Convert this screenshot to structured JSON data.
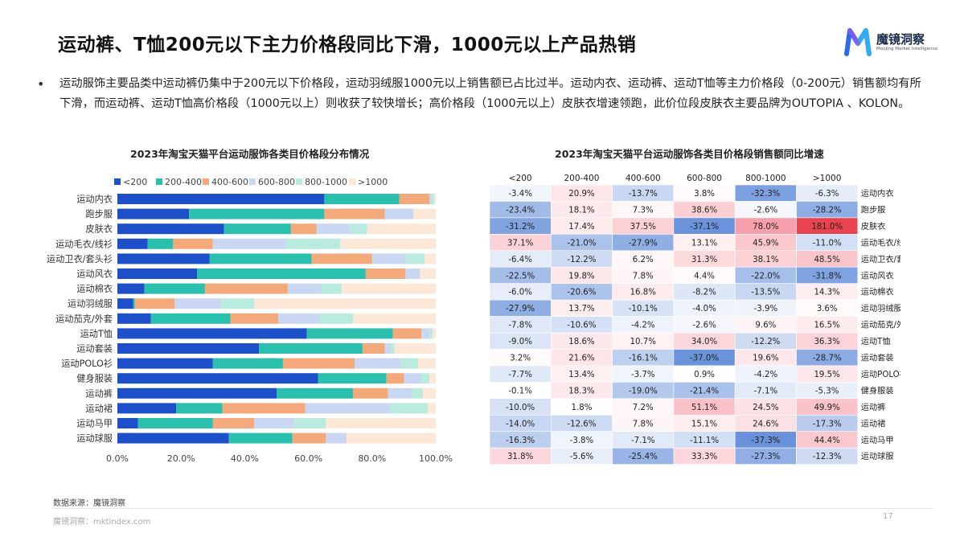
{
  "page": {
    "title": "运动裤、T恤200元以下主力价格段同比下滑，1000元以上产品热销",
    "bullet": "运动服饰主要品类中运动裤仍集中于200元以下价格段，运动羽绒服1000元以上销售额已占比过半。运动内衣、运动裤、运动T恤等主力价格段（0-200元）销售额均有所下滑，而运动裤、运动T恤高价格段（1000元以上）则收获了较快增长；高价格段（1000元以上）皮肤衣增速领跑，此价位段皮肤衣主要品牌为OUTOPIA 、KOLON。",
    "source": "数据来源：魔镜洞察",
    "footer": "魔镜洞察：mktindex.com",
    "page_number": "17"
  },
  "logo": {
    "name": "魔镜洞察",
    "sub": "Moojing Market Intelligence",
    "colors": [
      "#2d6be4",
      "#8a5cf0",
      "#35b6f0"
    ]
  },
  "chart_data": [
    {
      "type": "bar",
      "stacked": true,
      "orientation": "horizontal",
      "title": "2023年淘宝天猫平台运动服饰各类目价格段分布情况",
      "categories": [
        "运动内衣",
        "跑步服",
        "皮肤衣",
        "运动毛衣/线衫",
        "运动卫衣/套头衫",
        "运动风衣",
        "运动棉衣",
        "运动羽绒服",
        "运动茄克/外套",
        "运动T恤",
        "运动套装",
        "运动POLO衫",
        "健身服装",
        "运动裤",
        "运动裙",
        "运动马甲",
        "运动球服"
      ],
      "series": [
        {
          "name": "<200",
          "color": "#1d50c8",
          "values": [
            65,
            22.5,
            33.5,
            9.5,
            29,
            25,
            8.5,
            5,
            10.5,
            59.5,
            44.5,
            30,
            63,
            50,
            18.5,
            6.5,
            35
          ]
        },
        {
          "name": "200-400",
          "color": "#2bbfae",
          "values": [
            23.5,
            42.5,
            21,
            8,
            32,
            53,
            19,
            0.5,
            25,
            27,
            32.5,
            22,
            21.5,
            24,
            14.5,
            23.5,
            20
          ]
        },
        {
          "name": "400-600",
          "color": "#f4a97b",
          "values": [
            9.5,
            19,
            8,
            12.5,
            19,
            12.5,
            26,
            12.5,
            15,
            9,
            7,
            22.5,
            5.5,
            11,
            26,
            13,
            10.5
          ]
        },
        {
          "name": "600-800",
          "color": "#c9d7f2",
          "values": [
            0.5,
            9,
            10.5,
            23,
            10.5,
            4.5,
            10.5,
            14.5,
            13,
            2.5,
            2,
            14.5,
            5.5,
            7.5,
            26.5,
            12.5,
            6.5
          ]
        },
        {
          "name": "800-1000",
          "color": "#b9ecdf",
          "values": [
            1,
            0,
            5.5,
            17,
            6,
            0,
            6.5,
            10.5,
            10.5,
            1,
            1,
            5.5,
            2.5,
            3.5,
            12,
            10,
            0
          ]
        },
        {
          "name": ">1000",
          "color": "#fde7d6",
          "values": [
            0.5,
            7,
            21.5,
            30,
            3.5,
            5,
            29.5,
            57,
            26,
            1,
            13,
            5.5,
            2,
            4,
            2.5,
            34.5,
            28
          ]
        }
      ],
      "x_ticks": [
        "0.0%",
        "20.0%",
        "40.0%",
        "60.0%",
        "80.0%",
        "100.0%"
      ],
      "xlim": [
        0,
        100
      ],
      "legend": "top"
    },
    {
      "type": "heatmap",
      "title": "2023年淘宝天猫平台运动服饰各类目价格段销售额同比增速",
      "columns": [
        "<200",
        "200-400",
        "400-600",
        "600-800",
        "800-1000",
        ">1000"
      ],
      "rows": [
        "运动内衣",
        "跑步服",
        "皮肤衣",
        "运动毛衣/线衫",
        "运动卫衣/套头衫",
        "运动风衣",
        "运动棉衣",
        "运动羽绒服",
        "运动茄克/外套",
        "运动T恤",
        "运动套装",
        "运动POLO衫",
        "健身服装",
        "运动裤",
        "运动裙",
        "运动马甲",
        "运动球服"
      ],
      "values": [
        [
          -3.4,
          20.9,
          -13.7,
          3.8,
          -32.3,
          -6.3
        ],
        [
          -23.4,
          18.1,
          7.3,
          38.6,
          -2.6,
          -28.2
        ],
        [
          -31.2,
          17.4,
          37.5,
          -37.1,
          78.0,
          181.0
        ],
        [
          37.1,
          -21.0,
          -27.9,
          13.1,
          45.9,
          -11.0
        ],
        [
          -6.4,
          -12.2,
          6.2,
          31.3,
          38.1,
          48.5
        ],
        [
          -22.5,
          19.8,
          7.8,
          4.4,
          -22.0,
          -31.8
        ],
        [
          -6.0,
          -20.6,
          16.8,
          -8.2,
          -13.5,
          14.3
        ],
        [
          -27.9,
          13.7,
          -10.1,
          -4.0,
          -3.9,
          3.6
        ],
        [
          -7.8,
          -10.6,
          -4.2,
          -2.6,
          9.6,
          16.5
        ],
        [
          -9.0,
          18.6,
          10.7,
          34.0,
          -12.2,
          36.3
        ],
        [
          3.2,
          21.6,
          -16.1,
          -37.0,
          19.6,
          -28.7
        ],
        [
          -7.7,
          13.4,
          -3.7,
          0.9,
          -4.2,
          19.5
        ],
        [
          -0.1,
          18.3,
          -19.0,
          -21.4,
          -7.1,
          -5.3
        ],
        [
          -10.0,
          1.8,
          7.2,
          51.1,
          24.5,
          49.9
        ],
        [
          -14.0,
          -12.6,
          7.8,
          15.1,
          24.6,
          -17.3
        ],
        [
          -16.3,
          -3.8,
          -7.1,
          -11.1,
          -37.3,
          44.4
        ],
        [
          31.8,
          -5.6,
          -25.4,
          33.3,
          -27.3,
          -12.3
        ]
      ],
      "labels": [
        [
          "-3.4%",
          "20.9%",
          "-13.7%",
          "3.8%",
          "-32.3%",
          "-6.3%"
        ],
        [
          "-23.4%",
          "18.1%",
          "7.3%",
          "38.6%",
          "-2.6%",
          "-28.2%"
        ],
        [
          "-31.2%",
          "17.4%",
          "37.5%",
          "-37.1%",
          "78.0%",
          "181.0%"
        ],
        [
          "37.1%",
          "-21.0%",
          "-27.9%",
          "13.1%",
          "45.9%",
          "-11.0%"
        ],
        [
          "-6.4%",
          "-12.2%",
          "6.2%",
          "31.3%",
          "38.1%",
          "48.5%"
        ],
        [
          "-22.5%",
          "19.8%",
          "7.8%",
          "4.4%",
          "-22.0%",
          "-31.8%"
        ],
        [
          "-6.0%",
          "-20.6%",
          "16.8%",
          "-8.2%",
          "-13.5%",
          "14.3%"
        ],
        [
          "-27.9%",
          "13.7%",
          "-10.1%",
          "-4.0%",
          "-3.9%",
          "3.6%"
        ],
        [
          "-7.8%",
          "-10.6%",
          "-4.2%",
          "-2.6%",
          "9.6%",
          "16.5%"
        ],
        [
          "-9.0%",
          "18.6%",
          "10.7%",
          "34.0%",
          "-12.2%",
          "36.3%"
        ],
        [
          "3.2%",
          "21.6%",
          "-16.1%",
          "-37.0%",
          "19.6%",
          "-28.7%"
        ],
        [
          "-7.7%",
          "13.4%",
          "-3.7%",
          "0.9%",
          "-4.2%",
          "19.5%"
        ],
        [
          "-0.1%",
          "18.3%",
          "-19.0%",
          "-21.4%",
          "-7.1%",
          "-5.3%"
        ],
        [
          "-10.0%",
          "1.8%",
          "7.2%",
          "51.1%",
          "24.5%",
          "49.9%"
        ],
        [
          "-14.0%",
          "-12.6%",
          "7.8%",
          "15.1%",
          "24.6%",
          "-17.3%"
        ],
        [
          "-16.3%",
          "-3.8%",
          "-7.1%",
          "-11.1%",
          "-37.3%",
          "44.4%"
        ],
        [
          "31.8%",
          "-5.6%",
          "-25.4%",
          "33.3%",
          "-27.3%",
          "-12.3%"
        ]
      ],
      "color_scale": {
        "negative": "#5b88d8",
        "neutral": "#ffffff",
        "positive": "#f2697a",
        "strong_positive": "#e8434f"
      }
    }
  ]
}
